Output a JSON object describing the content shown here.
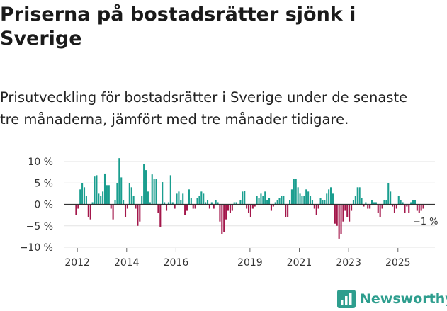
{
  "title": "Priserna på bostadsrätter sjönk i Sverige",
  "subtitle_line1": "Prisutveckling för bostadsrätter i Sverige under de senaste",
  "subtitle_line2": "tre månaderna, jämfört med tre månader tidigare.",
  "brand": "Newsworthy",
  "colors": {
    "positive": "#1a9e8f",
    "negative": "#a3174b",
    "brand": "#2e9e8e"
  },
  "chart_data": {
    "type": "bar",
    "title": "Priserna på bostadsrätter sjönk i Sverige",
    "xlabel": "",
    "ylabel": "",
    "x_start": 2011.95,
    "step": 0.0833,
    "xlim": [
      2011.45,
      2026.5
    ],
    "ylim": [
      -10,
      10
    ],
    "yticks": [
      {
        "value": 10,
        "label": "10 %"
      },
      {
        "value": 5,
        "label": "5 %"
      },
      {
        "value": 0,
        "label": "0 %"
      },
      {
        "value": -5,
        "label": "−5 %"
      },
      {
        "value": -10,
        "label": "−10 %"
      }
    ],
    "xticks": [
      {
        "value": 2012,
        "label": "2012"
      },
      {
        "value": 2014,
        "label": "2014"
      },
      {
        "value": 2016,
        "label": "2016"
      },
      {
        "value": 2019,
        "label": "2019"
      },
      {
        "value": 2021,
        "label": "2021"
      },
      {
        "value": 2023,
        "label": "2023"
      },
      {
        "value": 2025,
        "label": "2025"
      }
    ],
    "annotation": "−1 %",
    "values": [
      -2.5,
      -1,
      3.5,
      5,
      4,
      2,
      -3,
      -3.5,
      0.5,
      6.5,
      6.8,
      2.5,
      2,
      3,
      7.2,
      4.5,
      4.5,
      -1,
      -3.5,
      1,
      5,
      10.8,
      6.3,
      1,
      -3,
      -1,
      5,
      4,
      2,
      -1,
      -5,
      -4,
      2,
      9.5,
      8,
      3,
      0.5,
      7,
      6,
      6,
      -2,
      -5.2,
      5.2,
      0.5,
      -1.5,
      0.5,
      6.8,
      0.5,
      -1,
      2.5,
      3,
      1,
      2.5,
      -2.5,
      -1.5,
      3.5,
      1.5,
      -1,
      -1,
      1.5,
      2,
      3,
      2.5,
      0.5,
      1,
      -1,
      0.5,
      -1,
      1,
      0.5,
      -4,
      -7,
      -6.5,
      -3.5,
      -1.5,
      -2,
      -1.5,
      0.5,
      0.5,
      0,
      1,
      3,
      3.2,
      -1,
      -2,
      -3,
      -1,
      -0.5,
      2,
      1.5,
      2.5,
      2,
      3,
      1,
      1.5,
      -1.5,
      -0.5,
      0.5,
      1,
      1.5,
      2,
      2,
      -3,
      -3,
      1,
      3.5,
      6,
      6,
      4,
      2.5,
      2,
      2,
      3.5,
      3,
      2,
      1,
      -1,
      -2.5,
      -1,
      1.5,
      1,
      1,
      2.5,
      3.5,
      4,
      2.5,
      -4.5,
      -5,
      -8,
      -7,
      -4,
      -1.5,
      -3,
      -4,
      -1.5,
      1,
      2,
      4,
      4,
      1.5,
      -0.5,
      0.5,
      -1,
      -1,
      1,
      0.5,
      0.5,
      -2,
      -3,
      -1,
      1,
      1,
      5,
      3,
      -0.5,
      -2,
      -1,
      2,
      1,
      0.5,
      -2,
      -0.5,
      -2,
      0.5,
      1,
      1,
      -1.5,
      -2,
      -1.5,
      -1
    ]
  }
}
